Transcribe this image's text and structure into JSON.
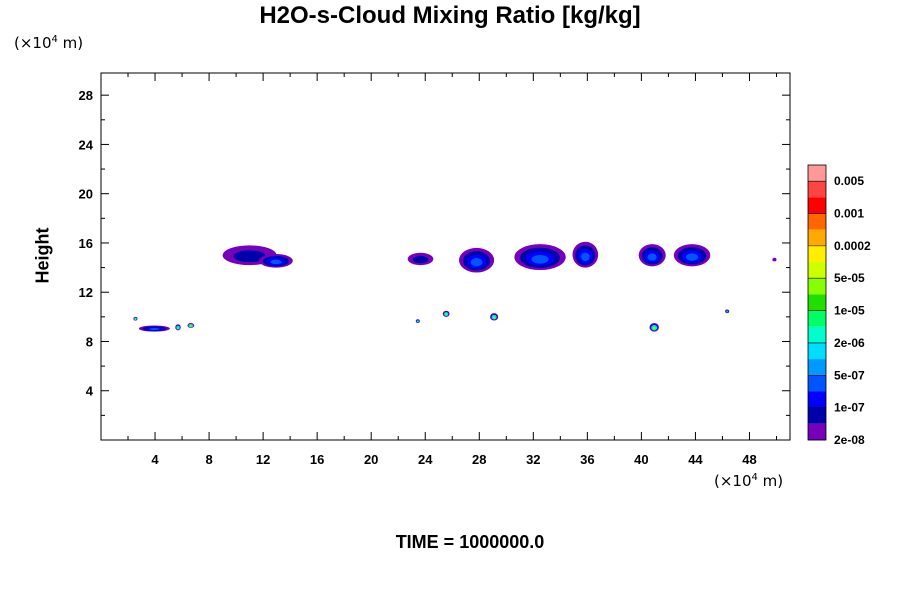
{
  "chart_data": {
    "type": "contour",
    "title": "H2O-s-Cloud Mixing Ratio [kg/kg]",
    "ylabel": "Height",
    "xunit": {
      "prefix": "(×10",
      "exp": "4",
      "suffix": " m)"
    },
    "yunit": {
      "prefix": "(×10",
      "exp": "4",
      "suffix": " m)"
    },
    "xlim": [
      0,
      51
    ],
    "ylim": [
      0,
      29.8
    ],
    "xticks": [
      4,
      8,
      12,
      16,
      20,
      24,
      28,
      32,
      36,
      40,
      44,
      48
    ],
    "yticks": [
      4,
      8,
      12,
      16,
      20,
      24,
      28
    ],
    "footer": "TIME = 1000000.0",
    "colorbar": {
      "levels": [
        "0.005",
        "0.001",
        "0.0002",
        "5e-05",
        "1e-05",
        "2e-06",
        "5e-07",
        "1e-07",
        "2e-08"
      ],
      "colors": [
        "#ff9999",
        "#ff4444",
        "#ff0000",
        "#ff6600",
        "#ffaa00",
        "#ffee00",
        "#ccff00",
        "#88ff00",
        "#22dd00",
        "#00ff66",
        "#00ffcc",
        "#00ddff",
        "#0099ff",
        "#0055ff",
        "#0000ff",
        "#0000aa",
        "#7700bb"
      ]
    },
    "cloud_regions": [
      {
        "x": [
          9.0,
          13.0
        ],
        "y": [
          14.2,
          15.8
        ],
        "level": "1e-07"
      },
      {
        "x": [
          11.7,
          14.2
        ],
        "y": [
          14.0,
          15.1
        ],
        "level": "5e-07"
      },
      {
        "x": [
          22.7,
          24.6
        ],
        "y": [
          14.2,
          15.2
        ],
        "level": "1e-07"
      },
      {
        "x": [
          26.5,
          29.1
        ],
        "y": [
          13.6,
          15.6
        ],
        "level": "5e-07"
      },
      {
        "x": [
          30.6,
          34.4
        ],
        "y": [
          13.8,
          15.9
        ],
        "level": "5e-07"
      },
      {
        "x": [
          34.9,
          36.8
        ],
        "y": [
          14.0,
          16.1
        ],
        "level": "5e-07"
      },
      {
        "x": [
          39.8,
          41.8
        ],
        "y": [
          14.1,
          15.9
        ],
        "level": "5e-07"
      },
      {
        "x": [
          42.4,
          45.1
        ],
        "y": [
          14.1,
          15.9
        ],
        "level": "5e-07"
      },
      {
        "x": [
          49.7,
          50.0
        ],
        "y": [
          14.5,
          14.8
        ],
        "level": "2e-08"
      },
      {
        "x": [
          2.4,
          2.7
        ],
        "y": [
          9.7,
          10.0
        ],
        "level": "5e-05"
      },
      {
        "x": [
          2.8,
          5.1
        ],
        "y": [
          8.8,
          9.3
        ],
        "level": "5e-07"
      },
      {
        "x": [
          5.5,
          5.9
        ],
        "y": [
          8.9,
          9.4
        ],
        "level": "5e-05"
      },
      {
        "x": [
          6.4,
          6.9
        ],
        "y": [
          9.1,
          9.5
        ],
        "level": "0.0002"
      },
      {
        "x": [
          23.3,
          23.6
        ],
        "y": [
          9.5,
          9.8
        ],
        "level": "1e-05"
      },
      {
        "x": [
          25.3,
          25.8
        ],
        "y": [
          10.0,
          10.5
        ],
        "level": "5e-05"
      },
      {
        "x": [
          28.8,
          29.4
        ],
        "y": [
          9.7,
          10.3
        ],
        "level": "5e-05"
      },
      {
        "x": [
          40.6,
          41.3
        ],
        "y": [
          8.8,
          9.5
        ],
        "level": "5e-05"
      },
      {
        "x": [
          46.2,
          46.5
        ],
        "y": [
          10.3,
          10.6
        ],
        "level": "2e-06"
      }
    ]
  }
}
